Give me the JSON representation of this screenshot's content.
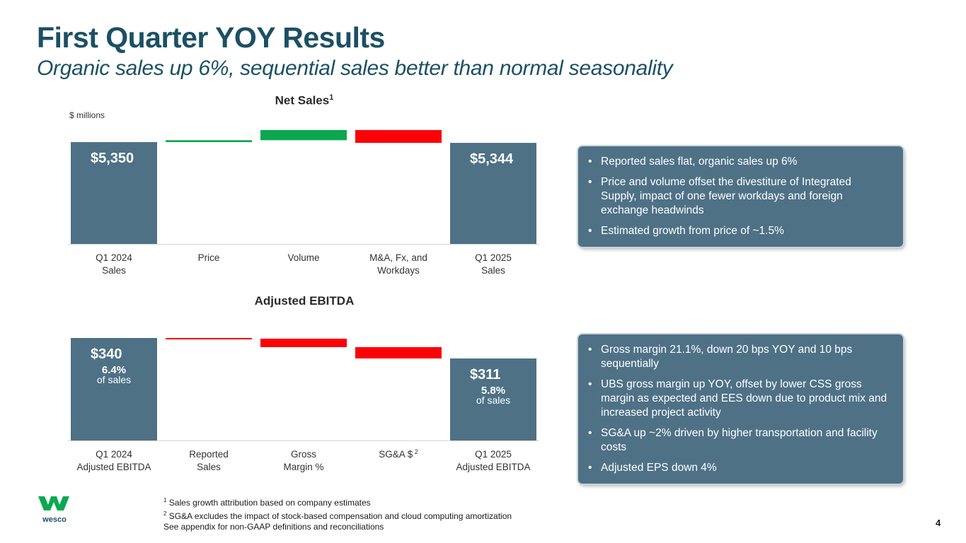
{
  "slide": {
    "title": "First Quarter YOY Results",
    "subtitle": "Organic sales up 6%, sequential sales better than normal seasonality",
    "units_label": "$ millions",
    "page_number": "4"
  },
  "colors": {
    "total_bar": "#4e7186",
    "increase": "#0aa84f",
    "decrease": "#fb0207",
    "title": "#1b5065"
  },
  "chart_data": [
    {
      "type": "bar",
      "subtype": "waterfall",
      "title": "Net Sales",
      "title_footnote": "1",
      "ylabel": "$ millions",
      "categories": [
        "Q1 2024\nSales",
        "Price",
        "Volume",
        "M&A, Fx, and\nWorkdays",
        "Q1 2025\nSales"
      ],
      "values": [
        5350,
        15,
        80,
        -101,
        5344
      ],
      "measure": [
        "total",
        "relative",
        "relative",
        "relative",
        "total"
      ],
      "data_labels": [
        "$5,350",
        "",
        "",
        "",
        "$5,344"
      ],
      "grid": false,
      "legend": "none"
    },
    {
      "type": "bar",
      "subtype": "waterfall",
      "title": "Adjusted EBITDA",
      "categories": [
        "Q1 2024\nAdjusted EBITDA",
        "Reported\nSales",
        "Gross\nMargin %",
        "SG&A $",
        "Q1 2025\nAdjusted EBITDA"
      ],
      "category_footnotes": [
        "",
        "",
        "",
        "2",
        ""
      ],
      "values": [
        340,
        -1,
        -12,
        -16,
        311
      ],
      "measure": [
        "total",
        "relative",
        "relative",
        "relative",
        "total"
      ],
      "data_labels": [
        "$340",
        "",
        "",
        "",
        "$311"
      ],
      "secondary_labels": [
        {
          "value": "6.4%",
          "text": "of sales"
        },
        null,
        null,
        null,
        {
          "value": "5.8%",
          "text": "of sales"
        }
      ],
      "grid": false,
      "legend": "none"
    }
  ],
  "callouts": [
    {
      "items": [
        "Reported sales flat, organic sales up 6%",
        "Price and volume offset the divestiture of Integrated Supply, impact of one fewer workdays and foreign exchange headwinds",
        "Estimated growth from price of ~1.5%"
      ]
    },
    {
      "items": [
        "Gross margin 21.1%, down 20 bps YOY and 10 bps sequentially",
        "UBS gross margin up YOY, offset by lower CSS gross margin as expected and EES down due to product mix and increased project activity",
        "SG&A up ~2% driven by higher transportation and facility costs",
        "Adjusted EPS down 4%"
      ]
    }
  ],
  "footnotes": [
    {
      "marker": "1",
      "text": "Sales growth attribution based on company estimates"
    },
    {
      "marker": "2",
      "text": "SG&A excludes the impact of stock-based compensation and cloud computing amortization"
    },
    {
      "marker": "",
      "text": "See appendix for non-GAAP definitions and reconciliations"
    }
  ],
  "logo": {
    "name": "wesco-logo",
    "text": "wesco"
  }
}
